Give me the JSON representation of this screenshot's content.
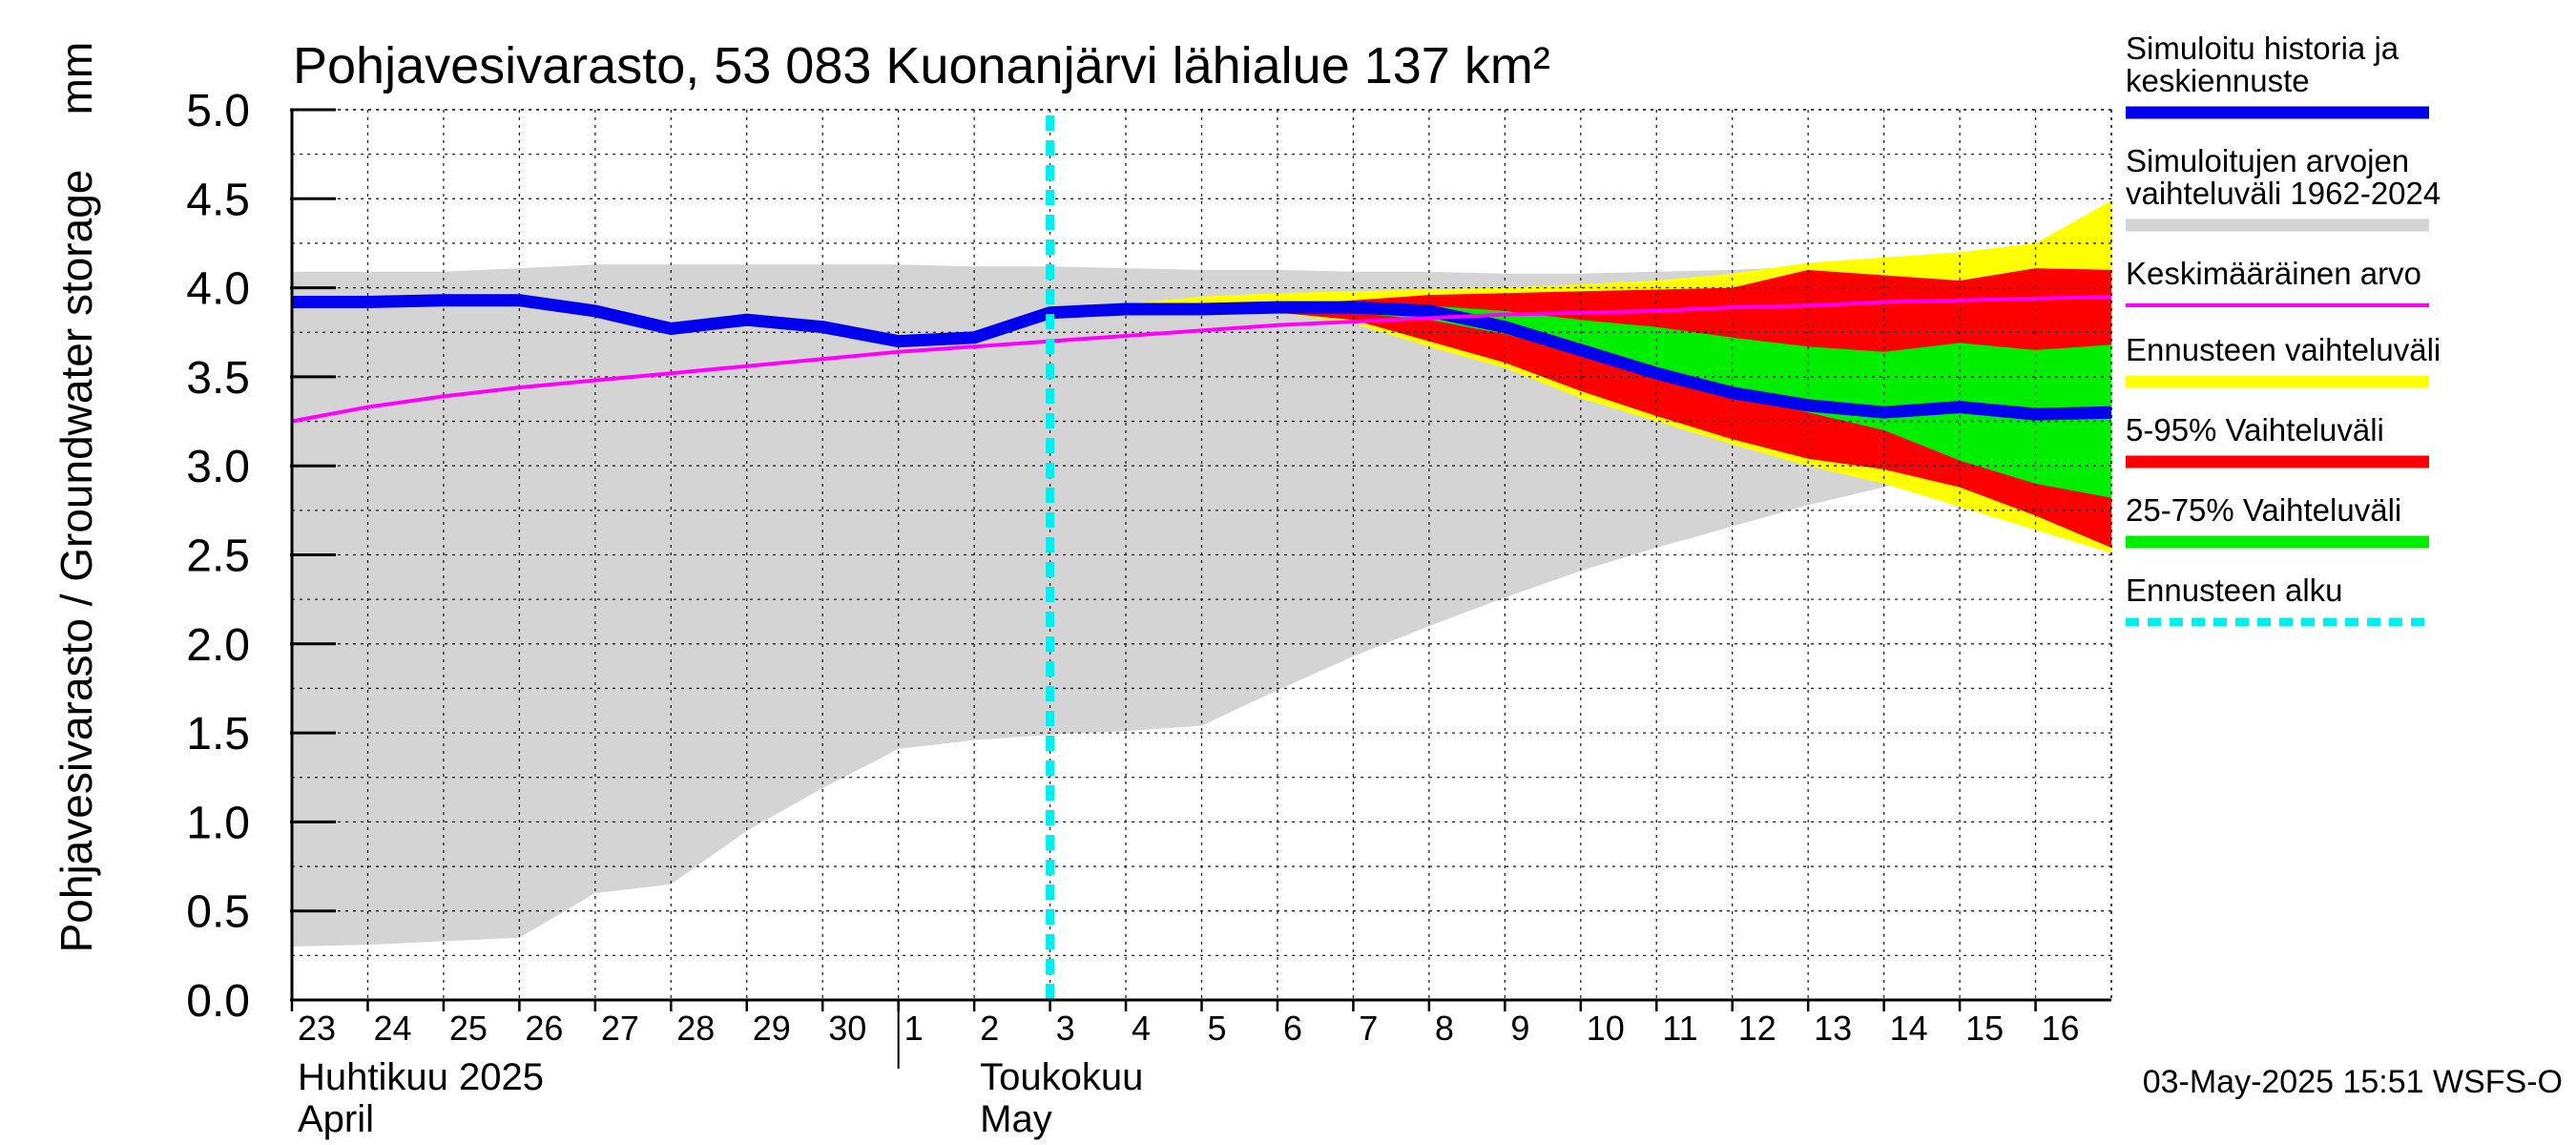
{
  "chart_data": {
    "type": "area",
    "title": "Pohjavesivarasto, 53 083 Kuonanjärvi lähialue 137 km²",
    "ylabel": "Pohjavesivarasto / Groundwater storage",
    "yunit": "mm",
    "ylim": [
      0.0,
      5.0
    ],
    "yticks": [
      "0.0",
      "0.5",
      "1.0",
      "1.5",
      "2.0",
      "2.5",
      "3.0",
      "3.5",
      "4.0",
      "4.5",
      "5.0"
    ],
    "xlim": [
      0,
      24
    ],
    "xticks": [
      {
        "x": 0,
        "label": "23"
      },
      {
        "x": 1,
        "label": "24"
      },
      {
        "x": 2,
        "label": "25"
      },
      {
        "x": 3,
        "label": "26"
      },
      {
        "x": 4,
        "label": "27"
      },
      {
        "x": 5,
        "label": "28"
      },
      {
        "x": 6,
        "label": "29"
      },
      {
        "x": 7,
        "label": "30"
      },
      {
        "x": 8,
        "label": "1"
      },
      {
        "x": 9,
        "label": "2"
      },
      {
        "x": 10,
        "label": "3"
      },
      {
        "x": 11,
        "label": "4"
      },
      {
        "x": 12,
        "label": "5"
      },
      {
        "x": 13,
        "label": "6"
      },
      {
        "x": 14,
        "label": "7"
      },
      {
        "x": 15,
        "label": "8"
      },
      {
        "x": 16,
        "label": "9"
      },
      {
        "x": 17,
        "label": "10"
      },
      {
        "x": 18,
        "label": "11"
      },
      {
        "x": 19,
        "label": "12"
      },
      {
        "x": 20,
        "label": "13"
      },
      {
        "x": 21,
        "label": "14"
      },
      {
        "x": 22,
        "label": "15"
      },
      {
        "x": 23,
        "label": "16"
      }
    ],
    "month_labels": [
      {
        "x": 0,
        "fi": "Huhtikuu  2025",
        "en": "April"
      },
      {
        "x": 9,
        "fi": "Toukokuu",
        "en": "May"
      }
    ],
    "month_divider_x": 8,
    "forecast_start_x": 10,
    "history_range": {
      "x": [
        0,
        1,
        2,
        3,
        4,
        5,
        6,
        7,
        8,
        9,
        10,
        11,
        12,
        13,
        14,
        15,
        16,
        17,
        18,
        19,
        20,
        21,
        22,
        23,
        24
      ],
      "upper": [
        4.09,
        4.09,
        4.09,
        4.11,
        4.13,
        4.13,
        4.13,
        4.13,
        4.13,
        4.12,
        4.12,
        4.11,
        4.1,
        4.1,
        4.09,
        4.09,
        4.08,
        4.08,
        4.09,
        4.1,
        4.12,
        4.13,
        4.14,
        4.15,
        4.15
      ],
      "lower": [
        0.3,
        0.31,
        0.33,
        0.35,
        0.6,
        0.65,
        0.95,
        1.19,
        1.41,
        1.46,
        1.49,
        1.51,
        1.54,
        1.74,
        1.93,
        2.1,
        2.26,
        2.41,
        2.54,
        2.66,
        2.78,
        2.88,
        2.98,
        2.92,
        2.92
      ]
    },
    "forecast_x": [
      10,
      11,
      12,
      13,
      14,
      15,
      16,
      17,
      18,
      19,
      20,
      21,
      22,
      23,
      24
    ],
    "forecast_range": {
      "upper": [
        3.86,
        3.91,
        3.95,
        3.97,
        3.98,
        3.99,
        4.0,
        4.02,
        4.04,
        4.08,
        4.14,
        4.17,
        4.2,
        4.25,
        4.49
      ],
      "lower": [
        3.86,
        3.86,
        3.86,
        3.86,
        3.8,
        3.67,
        3.55,
        3.38,
        3.25,
        3.12,
        3.0,
        2.9,
        2.77,
        2.64,
        2.51
      ]
    },
    "range_5_95": {
      "upper": [
        3.86,
        3.87,
        3.88,
        3.9,
        3.93,
        3.96,
        3.97,
        3.98,
        3.99,
        4.0,
        4.1,
        4.07,
        4.04,
        4.11,
        4.1
      ],
      "lower": [
        3.86,
        3.86,
        3.86,
        3.86,
        3.82,
        3.7,
        3.58,
        3.42,
        3.28,
        3.15,
        3.04,
        2.98,
        2.88,
        2.72,
        2.54
      ]
    },
    "range_25_75": {
      "upper": [
        3.86,
        3.87,
        3.88,
        3.89,
        3.9,
        3.9,
        3.87,
        3.82,
        3.78,
        3.72,
        3.67,
        3.64,
        3.69,
        3.65,
        3.68
      ],
      "lower": [
        3.86,
        3.86,
        3.87,
        3.87,
        3.86,
        3.82,
        3.74,
        3.63,
        3.52,
        3.4,
        3.3,
        3.2,
        3.03,
        2.9,
        2.82
      ]
    },
    "series": [
      {
        "name": "Simuloitu historia ja keskiennuste",
        "color": "#0000ee",
        "x": [
          0,
          1,
          2,
          3,
          4,
          5,
          6,
          7,
          8,
          9,
          10,
          11,
          12,
          13,
          14,
          15,
          16,
          17,
          18,
          19,
          20,
          21,
          22,
          23,
          24
        ],
        "values": [
          3.92,
          3.92,
          3.93,
          3.93,
          3.87,
          3.77,
          3.82,
          3.78,
          3.7,
          3.72,
          3.86,
          3.88,
          3.88,
          3.89,
          3.89,
          3.87,
          3.78,
          3.65,
          3.52,
          3.41,
          3.34,
          3.3,
          3.33,
          3.29,
          3.3
        ]
      },
      {
        "name": "Keskimääräinen arvo",
        "color": "#ff00ff",
        "x": [
          0,
          1,
          2,
          3,
          4,
          5,
          6,
          7,
          8,
          9,
          10,
          11,
          12,
          13,
          14,
          15,
          16,
          17,
          18,
          19,
          20,
          21,
          22,
          23,
          24
        ],
        "values": [
          3.25,
          3.33,
          3.39,
          3.44,
          3.48,
          3.52,
          3.56,
          3.6,
          3.64,
          3.67,
          3.7,
          3.73,
          3.76,
          3.79,
          3.81,
          3.83,
          3.85,
          3.86,
          3.87,
          3.89,
          3.9,
          3.92,
          3.93,
          3.94,
          3.95
        ]
      }
    ],
    "legend_position": "right",
    "legend": [
      {
        "lines": [
          "Simuloitu historia ja",
          "keskiennuste"
        ],
        "color": "#0000ee",
        "style": "thick"
      },
      {
        "lines": [
          "Simuloitujen arvojen",
          "vaihteluväli 1962-2024"
        ],
        "color": "#d4d4d4",
        "style": "thick"
      },
      {
        "lines": [
          "Keskimääräinen arvo"
        ],
        "color": "#ff00ff",
        "style": "thin"
      },
      {
        "lines": [
          "Ennusteen vaihteluväli"
        ],
        "color": "#ffff00",
        "style": "thick"
      },
      {
        "lines": [
          "5-95% Vaihteluväli"
        ],
        "color": "#ff0000",
        "style": "thick"
      },
      {
        "lines": [
          "25-75% Vaihteluväli"
        ],
        "color": "#00ee00",
        "style": "thick"
      },
      {
        "lines": [
          "Ennusteen alku"
        ],
        "color": "#00eeee",
        "style": "dashed"
      }
    ],
    "grid": true,
    "colors": {
      "history_range": "#d4d4d4",
      "forecast_range": "#ffff00",
      "range_5_95": "#ff0000",
      "range_25_75": "#00ee00",
      "forecast_start": "#00eeee",
      "grid": "#000000"
    },
    "footer": "03-May-2025 15:51 WSFS-O"
  }
}
